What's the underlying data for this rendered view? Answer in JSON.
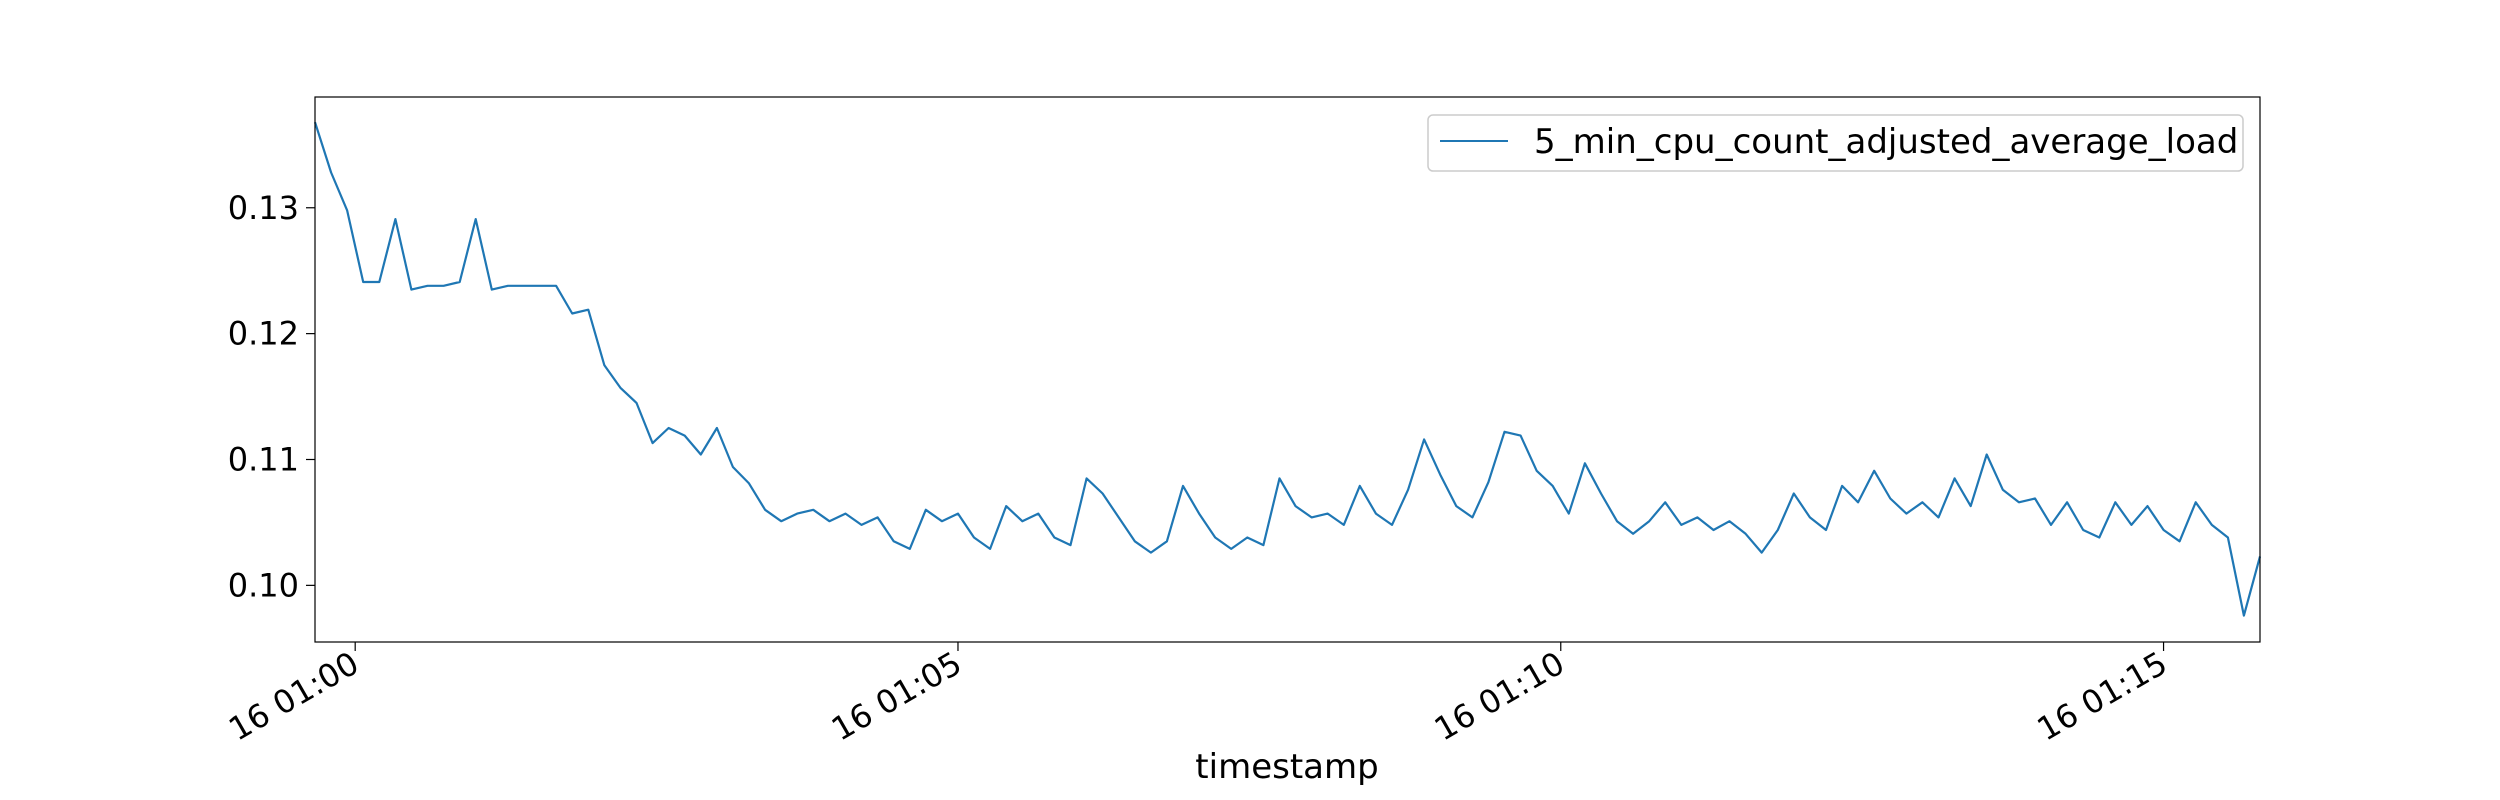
{
  "chart_data": {
    "type": "line",
    "title": "",
    "xlabel": "timestamp",
    "ylabel": "",
    "x_start": "16 00:59:40",
    "x_step_seconds": 8,
    "xlim": [
      "16 00:59:40",
      "16 01:15:48"
    ],
    "ylim": [
      0.0955,
      0.1388
    ],
    "x_ticks": [
      {
        "value": "16 01:00",
        "label": "16 01:00"
      },
      {
        "value": "16 01:05",
        "label": "16 01:05"
      },
      {
        "value": "16 01:10",
        "label": "16 01:10"
      },
      {
        "value": "16 01:15",
        "label": "16 01:15"
      }
    ],
    "y_ticks": [
      {
        "value": 0.1,
        "label": "0.10"
      },
      {
        "value": 0.11,
        "label": "0.11"
      },
      {
        "value": 0.12,
        "label": "0.12"
      },
      {
        "value": 0.13,
        "label": "0.13"
      }
    ],
    "grid": false,
    "legend": {
      "position": "top-right"
    },
    "series": [
      {
        "name": "5_min_cpu_count_adjusted_average_load",
        "color": "#1f77b4",
        "values": [
          0.1368,
          0.1328,
          0.1298,
          0.1241,
          0.1241,
          0.1291,
          0.1235,
          0.1238,
          0.1238,
          0.1241,
          0.1291,
          0.1235,
          0.1238,
          0.1238,
          0.1238,
          0.1238,
          0.1216,
          0.1219,
          0.1175,
          0.1157,
          0.1145,
          0.1113,
          0.1125,
          0.1119,
          0.1104,
          0.1125,
          0.1094,
          0.1081,
          0.106,
          0.1051,
          0.1057,
          0.106,
          0.1051,
          0.1057,
          0.1048,
          0.1054,
          0.1035,
          0.1029,
          0.106,
          0.1051,
          0.1057,
          0.1038,
          0.1029,
          0.1063,
          0.1051,
          0.1057,
          0.1038,
          0.1032,
          0.1085,
          0.1073,
          0.1054,
          0.1035,
          0.1026,
          0.1035,
          0.1079,
          0.1057,
          0.1038,
          0.1029,
          0.1038,
          0.1032,
          0.1085,
          0.1063,
          0.1054,
          0.1057,
          0.1048,
          0.1079,
          0.1057,
          0.1048,
          0.1076,
          0.1116,
          0.1088,
          0.1063,
          0.1054,
          0.1082,
          0.1122,
          0.1119,
          0.1091,
          0.1079,
          0.1057,
          0.1097,
          0.1073,
          0.1051,
          0.1041,
          0.1051,
          0.1066,
          0.1048,
          0.1054,
          0.1044,
          0.1051,
          0.1041,
          0.1026,
          0.1044,
          0.1073,
          0.1054,
          0.1044,
          0.1079,
          0.1066,
          0.1091,
          0.1069,
          0.1057,
          0.1066,
          0.1054,
          0.1085,
          0.1063,
          0.1104,
          0.1076,
          0.1066,
          0.1069,
          0.1048,
          0.1066,
          0.1044,
          0.1038,
          0.1066,
          0.1048,
          0.1063,
          0.1044,
          0.1035,
          0.1066,
          0.1048,
          0.1038,
          0.0976,
          0.1023
        ]
      }
    ]
  }
}
